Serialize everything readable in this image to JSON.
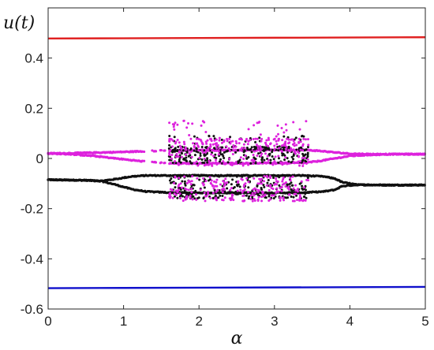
{
  "chart_data": {
    "type": "scatter",
    "title": "",
    "xlabel": "α",
    "ylabel": "u(t)",
    "xlim": [
      0,
      5
    ],
    "ylim": [
      -0.6,
      0.6
    ],
    "xticks": [
      "0",
      "1",
      "2",
      "3",
      "4",
      "5"
    ],
    "yticks": [
      "0.4",
      "0.2",
      "0",
      "-0.2",
      "-0.4",
      "-0.6"
    ],
    "grid": false,
    "legend": "none",
    "series": [
      {
        "color": "#e02020",
        "kind": "line",
        "x": [
          0,
          1,
          2,
          3,
          4,
          5
        ],
        "y": [
          0.478,
          0.479,
          0.48,
          0.481,
          0.482,
          0.483
        ]
      },
      {
        "color": "#1010cc",
        "kind": "line",
        "x": [
          0,
          1,
          2,
          3,
          4,
          5
        ],
        "y": [
          -0.517,
          -0.516,
          -0.515,
          -0.514,
          -0.513,
          -0.512
        ]
      },
      {
        "color": "#111111",
        "kind": "branches",
        "x": [
          0,
          0.5,
          0.7,
          0.9,
          1.1,
          1.3,
          1.6,
          2.0,
          2.5,
          3.0,
          3.4,
          3.65,
          3.8,
          3.9,
          4.1,
          4.5,
          5.0
        ],
        "y_upper": [
          -0.085,
          -0.087,
          -0.09,
          -0.082,
          -0.072,
          -0.068,
          -0.068,
          -0.068,
          -0.068,
          -0.068,
          -0.068,
          -0.072,
          -0.08,
          -0.095,
          -0.105,
          -0.106,
          -0.106
        ],
        "y_lower": [
          -0.085,
          -0.087,
          -0.09,
          -0.105,
          -0.122,
          -0.132,
          -0.136,
          -0.137,
          -0.137,
          -0.137,
          -0.136,
          -0.132,
          -0.125,
          -0.11,
          -0.105,
          -0.106,
          -0.106
        ]
      },
      {
        "color": "#dd22dd",
        "kind": "branches",
        "x": [
          0,
          0.3,
          0.6,
          0.9,
          1.2,
          1.4,
          1.6,
          3.4,
          3.6,
          3.8,
          4.0,
          4.3,
          4.6,
          5.0
        ],
        "y_upper": [
          0.02,
          0.021,
          0.023,
          0.025,
          0.028,
          0.03,
          0.032,
          0.034,
          0.03,
          0.024,
          0.019,
          0.017,
          0.017,
          0.017
        ],
        "y_lower": [
          0.02,
          0.017,
          0.01,
          0.0,
          -0.01,
          -0.015,
          -0.02,
          -0.018,
          -0.01,
          0.0,
          0.01,
          0.015,
          0.017,
          0.017
        ]
      },
      {
        "color": "#111111",
        "kind": "chaotic-cloud",
        "x_range": [
          1.6,
          3.45
        ],
        "bands": [
          [
            -0.02,
            0.09
          ],
          [
            -0.16,
            -0.07
          ]
        ]
      },
      {
        "color": "#dd22dd",
        "kind": "chaotic-cloud",
        "x_range": [
          1.6,
          3.45
        ],
        "bands": [
          [
            -0.03,
            0.15
          ],
          [
            -0.17,
            -0.07
          ]
        ]
      }
    ]
  }
}
